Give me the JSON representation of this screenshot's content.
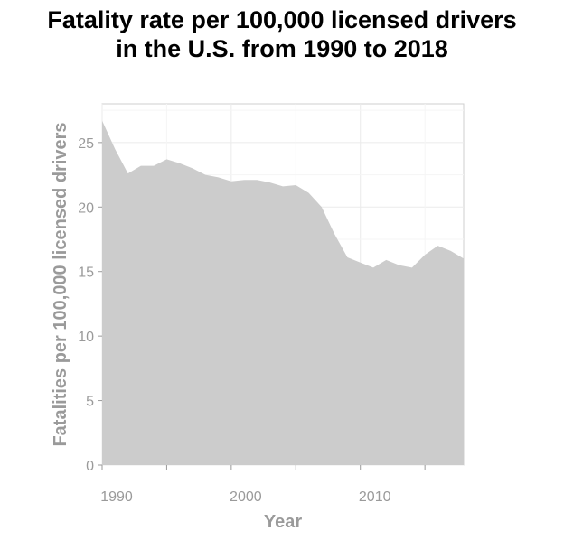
{
  "chart_data": {
    "type": "area",
    "title_lines": [
      "Fatality rate per 100,000 licensed drivers",
      "in the U.S. from 1990 to 2018"
    ],
    "xlabel": "Year",
    "ylabel": "Fatalities per 100,000 licensed drivers",
    "xlim": [
      1990,
      2018
    ],
    "ylim": [
      0,
      28
    ],
    "xticks": [
      1990,
      2000,
      2010
    ],
    "yticks": [
      0,
      5,
      10,
      15,
      20,
      25
    ],
    "grid": true,
    "fill_color": "#cccccc",
    "series": [
      {
        "x": [
          1990,
          1991,
          1992,
          1993,
          1994,
          1995,
          1996,
          1997,
          1998,
          1999,
          2000,
          2001,
          2002,
          2003,
          2004,
          2005,
          2006,
          2007,
          2008,
          2009,
          2010,
          2011,
          2012,
          2013,
          2014,
          2015,
          2016,
          2017,
          2018
        ],
        "values": [
          26.7,
          24.5,
          22.6,
          23.2,
          23.2,
          23.7,
          23.4,
          23.0,
          22.5,
          22.3,
          22.0,
          22.1,
          22.1,
          21.9,
          21.6,
          21.7,
          21.1,
          20.0,
          17.9,
          16.1,
          15.7,
          15.3,
          15.9,
          15.5,
          15.3,
          16.3,
          17.0,
          16.6,
          16.0
        ]
      }
    ]
  }
}
